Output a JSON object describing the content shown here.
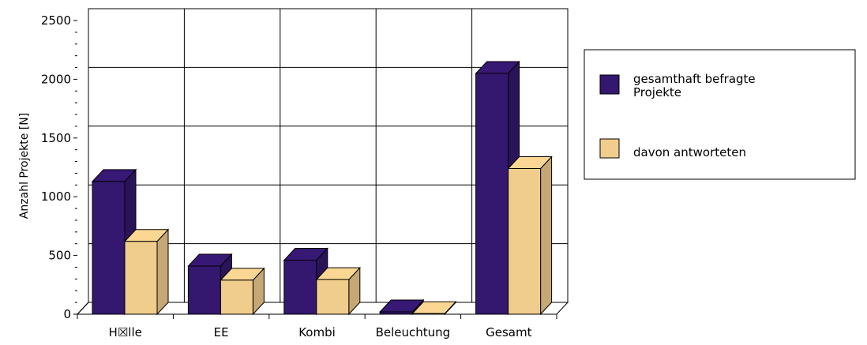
{
  "chart_data": {
    "type": "bar",
    "ylabel": "Anzahl Projekte [N]",
    "xlabel": "",
    "title": "",
    "ylim": [
      0,
      2500
    ],
    "yticks": [
      0,
      500,
      1000,
      1500,
      2000,
      2500
    ],
    "categories": [
      "H☒lle",
      "EE",
      "Kombi",
      "Beleuchtung",
      "Gesamt"
    ],
    "series": [
      {
        "name": "gesamthaft befragte Projekte",
        "name_lines": [
          "gesamthaft befragte",
          "Projekte"
        ],
        "color": "#34176e",
        "values": [
          1130,
          410,
          460,
          20,
          2050
        ]
      },
      {
        "name": "davon antworteten",
        "name_lines": [
          "davon antworteten"
        ],
        "color": "#f0cd8c",
        "values": [
          620,
          290,
          295,
          5,
          1240
        ]
      }
    ],
    "grid": true,
    "legend_position": "right",
    "style": "3d"
  }
}
